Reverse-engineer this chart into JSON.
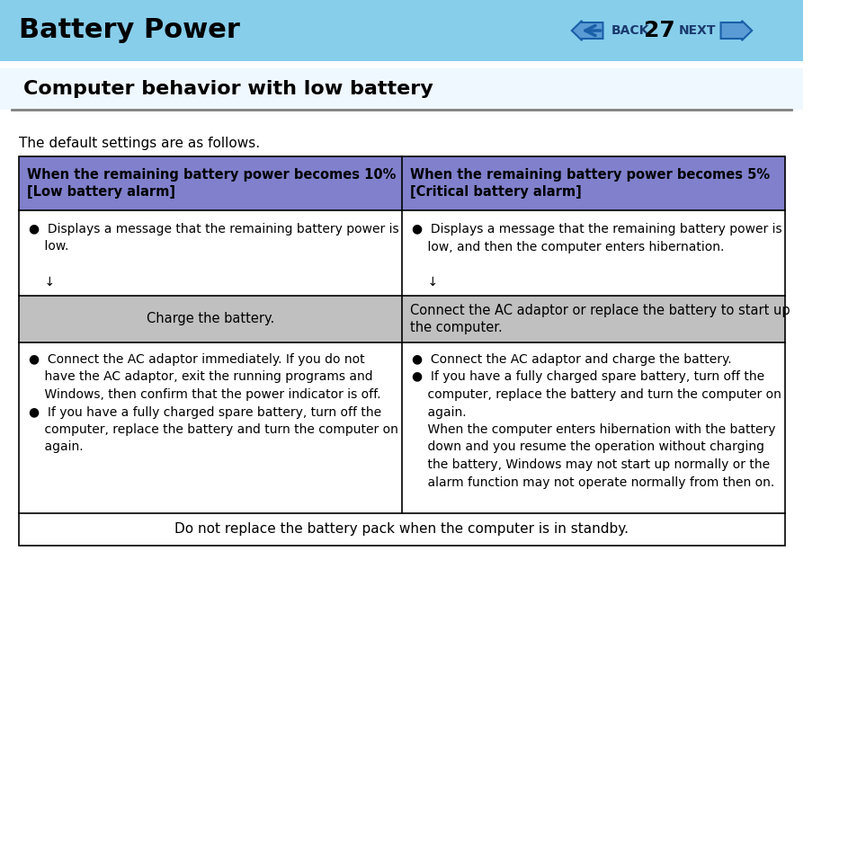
{
  "header_bg": "#87CEEB",
  "header_title": "Battery Power",
  "header_title_color": "#000000",
  "header_nav_color": "#1a3a6e",
  "header_page_num": "27",
  "page_bg": "#ffffff",
  "section_title": "Computer behavior with low battery",
  "section_title_color": "#000000",
  "section_title_bg": "#ffffff",
  "intro_text": "The default settings are as follows.",
  "table_border_color": "#000000",
  "col1_header_bg": "#8080cc",
  "col2_header_bg": "#8080cc",
  "col1_header_text": "When the remaining battery power becomes 10%\n[Low battery alarm]",
  "col2_header_text": "When the remaining battery power becomes 5%\n[Critical battery alarm]",
  "gray_row_bg": "#c0c0c0",
  "gray_col1_text": "Charge the battery.",
  "gray_col2_text": "Connect the AC adaptor or replace the battery to start up\nthe computer.",
  "col1_row1_text": "●  Displays a message that the remaining battery power is\n    low.\n\n    ↓",
  "col2_row1_text": "●  Displays a message that the remaining battery power is\n    low, and then the computer enters hibernation.\n\n    ↓",
  "col1_row3_text": "●  Connect the AC adaptor immediately. If you do not\n    have the AC adaptor, exit the running programs and\n    Windows, then confirm that the power indicator is off.\n●  If you have a fully charged spare battery, turn off the\n    computer, replace the battery and turn the computer on\n    again.",
  "col2_row3_text": "●  Connect the AC adaptor and charge the battery.\n●  If you have a fully charged spare battery, turn off the\n    computer, replace the battery and turn the computer on\n    again.\n    When the computer enters hibernation with the battery\n    down and you resume the operation without charging\n    the battery, Windows may not start up normally or the\n    alarm function may not operate normally from then on.",
  "footer_text": "Do not replace the battery pack when the computer is in standby.",
  "divider_color": "#808080"
}
